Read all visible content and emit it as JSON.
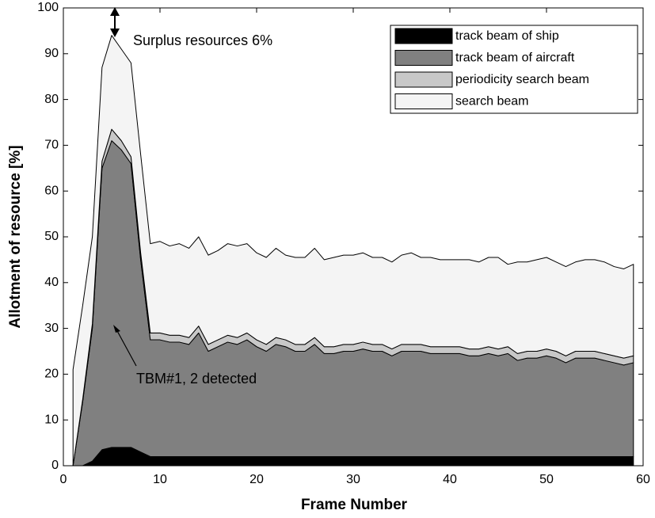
{
  "chart_data": {
    "type": "stacked-area",
    "x_label": "Frame Number",
    "y_label": "Allotment of resource [%]",
    "x": [
      1,
      2,
      3,
      4,
      5,
      6,
      7,
      8,
      9,
      10,
      11,
      12,
      13,
      14,
      15,
      16,
      17,
      18,
      19,
      20,
      21,
      22,
      23,
      24,
      25,
      26,
      27,
      28,
      29,
      30,
      31,
      32,
      33,
      34,
      35,
      36,
      37,
      38,
      39,
      40,
      41,
      42,
      43,
      44,
      45,
      46,
      47,
      48,
      49,
      50,
      51,
      52,
      53,
      54,
      55,
      56,
      57,
      58,
      59
    ],
    "series": [
      {
        "name": "track beam of ship",
        "color": "#000000",
        "values": [
          0,
          0,
          1,
          3.5,
          4,
          4,
          4,
          3,
          2,
          2,
          2,
          2,
          2,
          2,
          2,
          2,
          2,
          2,
          2,
          2,
          2,
          2,
          2,
          2,
          2,
          2,
          2,
          2,
          2,
          2,
          2,
          2,
          2,
          2,
          2,
          2,
          2,
          2,
          2,
          2,
          2,
          2,
          2,
          2,
          2,
          2,
          2,
          2,
          2,
          2,
          2,
          2,
          2,
          2,
          2,
          2,
          2,
          2,
          2
        ]
      },
      {
        "name": "track beam of aircraft",
        "color": "#808080",
        "values": [
          0,
          14,
          29,
          61.5,
          67,
          65,
          62,
          42,
          25.5,
          25.5,
          25,
          25,
          24.5,
          27,
          23,
          24,
          25,
          24.5,
          25.5,
          24,
          23,
          24.5,
          24,
          23,
          23,
          24.5,
          22.5,
          22.5,
          23,
          23,
          23.5,
          23,
          23,
          22,
          23,
          23,
          23,
          22.5,
          22.5,
          22.5,
          22.5,
          22,
          22,
          22.5,
          22,
          22.5,
          21,
          21.5,
          21.5,
          22,
          21.5,
          20.5,
          21.5,
          21.5,
          21.5,
          21,
          20.5,
          20,
          20.5
        ]
      },
      {
        "name": "periodicity search beam",
        "color": "#c8c8c8",
        "values": [
          0,
          0.5,
          1,
          1.5,
          2.5,
          2,
          1.5,
          1.5,
          1.5,
          1.5,
          1.5,
          1.5,
          1.5,
          1.5,
          1.5,
          1.5,
          1.5,
          1.5,
          1.5,
          1.5,
          1.5,
          1.5,
          1.5,
          1.5,
          1.5,
          1.5,
          1.5,
          1.5,
          1.5,
          1.5,
          1.5,
          1.5,
          1.5,
          1.5,
          1.5,
          1.5,
          1.5,
          1.5,
          1.5,
          1.5,
          1.5,
          1.5,
          1.5,
          1.5,
          1.5,
          1.5,
          1.5,
          1.5,
          1.5,
          1.5,
          1.5,
          1.5,
          1.5,
          1.5,
          1.5,
          1.5,
          1.5,
          1.5,
          1.5
        ]
      },
      {
        "name": "search beam",
        "color": "#f4f4f4",
        "values": [
          21,
          20.5,
          19,
          20.5,
          20.5,
          20,
          20.5,
          21.5,
          19.5,
          20,
          19.5,
          20,
          19.5,
          19.5,
          19.5,
          19.5,
          20,
          20,
          19.5,
          19,
          19,
          19.5,
          18.5,
          19,
          19,
          19.5,
          19,
          19.5,
          19.5,
          19.5,
          19.5,
          19,
          19,
          19,
          19.5,
          20,
          19,
          19.5,
          19,
          19,
          19,
          19.5,
          19,
          19.5,
          20,
          18,
          20,
          19.5,
          20,
          20,
          19.5,
          19.5,
          19.5,
          20,
          20,
          20,
          19.5,
          19.5,
          20
        ]
      }
    ],
    "xlim": [
      0,
      60
    ],
    "xticks": [
      0,
      10,
      20,
      30,
      40,
      50,
      60
    ],
    "ylim": [
      0,
      100
    ],
    "yticks": [
      0,
      10,
      20,
      30,
      40,
      50,
      60,
      70,
      80,
      90,
      100
    ],
    "grid": false,
    "legend": "upper right",
    "annotations": [
      "Surplus resources 6%",
      "TBM#1, 2 detected"
    ]
  }
}
